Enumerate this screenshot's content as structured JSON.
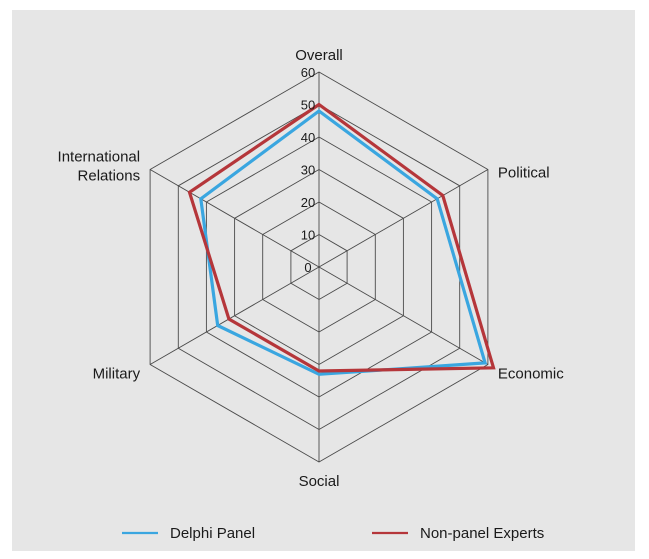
{
  "chart_data": {
    "type": "radar",
    "axes": [
      "Overall",
      "Political",
      "Economic",
      "Social",
      "Military",
      "International\nRelations"
    ],
    "rlim": [
      0,
      60
    ],
    "ticks": [
      "0",
      "10",
      "20",
      "30",
      "40",
      "50",
      "60"
    ],
    "grid": true,
    "legend_position": "bottom",
    "series": [
      {
        "name": "Delphi Panel",
        "color": "#3aa6e0",
        "values": [
          48,
          42,
          59,
          33,
          36,
          42
        ]
      },
      {
        "name": "Non-panel Experts",
        "color": "#b5363a",
        "values": [
          50,
          44,
          62,
          32,
          32,
          46
        ]
      }
    ]
  }
}
